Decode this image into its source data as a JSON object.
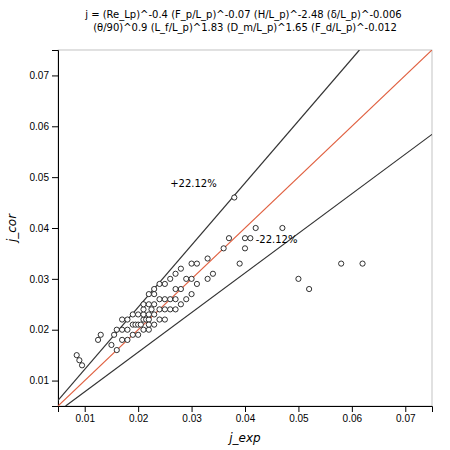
{
  "chart_data": {
    "type": "scatter",
    "title": "j = (Re_Lp)^-0.4 (F_p/L_p)^-0.07 (H/L_p)^-2.48 (δ/L_p)^-0.006 (θ/90)^0.9 (L_f/L_p)^1.83 (D_m/L_p)^1.65 (F_d/L_p)^-0.012",
    "xlabel": "j_exp",
    "ylabel": "j_cor",
    "xlim": [
      0.005,
      0.075
    ],
    "ylim": [
      0.005,
      0.075
    ],
    "xticks": [
      0.01,
      0.02,
      0.03,
      0.04,
      0.05,
      0.06,
      0.07
    ],
    "yticks": [
      0.01,
      0.02,
      0.03,
      0.04,
      0.05,
      0.06,
      0.07
    ],
    "grid": false,
    "series": [
      {
        "type": "line",
        "color": "#E06040",
        "line_style": "solid",
        "x": [
          0.005,
          0.075
        ],
        "values": [
          0.005,
          0.075
        ]
      },
      {
        "type": "line",
        "color": "#333333",
        "line_style": "solid",
        "x": [
          0.005,
          0.061415
        ],
        "values": [
          0.006106,
          0.075
        ]
      },
      {
        "type": "line",
        "color": "#333333",
        "line_style": "solid",
        "x": [
          0.00642013,
          0.075
        ],
        "values": [
          0.005,
          0.05841
        ]
      },
      {
        "type": "scatter",
        "color": "black",
        "marker": "open-circle",
        "x": [
          0.0085,
          0.009,
          0.0095,
          0.0125,
          0.013,
          0.015,
          0.0155,
          0.016,
          0.016,
          0.017,
          0.017,
          0.017,
          0.018,
          0.018,
          0.018,
          0.019,
          0.019,
          0.019,
          0.0195,
          0.02,
          0.02,
          0.02,
          0.0205,
          0.021,
          0.021,
          0.021,
          0.021,
          0.021,
          0.0215,
          0.022,
          0.022,
          0.022,
          0.022,
          0.022,
          0.022,
          0.0225,
          0.023,
          0.023,
          0.023,
          0.023,
          0.023,
          0.024,
          0.024,
          0.024,
          0.024,
          0.025,
          0.025,
          0.025,
          0.025,
          0.026,
          0.026,
          0.026,
          0.027,
          0.027,
          0.027,
          0.027,
          0.028,
          0.028,
          0.028,
          0.029,
          0.029,
          0.03,
          0.03,
          0.03,
          0.031,
          0.031,
          0.033,
          0.033,
          0.034,
          0.036,
          0.037,
          0.038,
          0.039,
          0.04,
          0.04,
          0.041,
          0.042,
          0.047,
          0.05,
          0.052,
          0.058,
          0.062
        ],
        "values": [
          0.015,
          0.014,
          0.013,
          0.018,
          0.019,
          0.017,
          0.019,
          0.016,
          0.02,
          0.018,
          0.02,
          0.022,
          0.018,
          0.02,
          0.022,
          0.019,
          0.021,
          0.023,
          0.021,
          0.019,
          0.021,
          0.023,
          0.021,
          0.02,
          0.022,
          0.023,
          0.024,
          0.025,
          0.022,
          0.02,
          0.022,
          0.023,
          0.025,
          0.027,
          0.021,
          0.024,
          0.021,
          0.023,
          0.025,
          0.027,
          0.028,
          0.022,
          0.024,
          0.026,
          0.029,
          0.022,
          0.024,
          0.026,
          0.029,
          0.024,
          0.026,
          0.03,
          0.024,
          0.026,
          0.028,
          0.031,
          0.025,
          0.028,
          0.032,
          0.026,
          0.03,
          0.027,
          0.03,
          0.033,
          0.029,
          0.033,
          0.03,
          0.034,
          0.031,
          0.036,
          0.038,
          0.046,
          0.033,
          0.036,
          0.038,
          0.038,
          0.04,
          0.04,
          0.03,
          0.028,
          0.033,
          0.033
        ]
      }
    ],
    "annotations": [
      {
        "text": "+22.12%",
        "x": 0.026,
        "y": 0.048
      },
      {
        "text": "-22.12%",
        "x": 0.042,
        "y": 0.037
      }
    ]
  }
}
